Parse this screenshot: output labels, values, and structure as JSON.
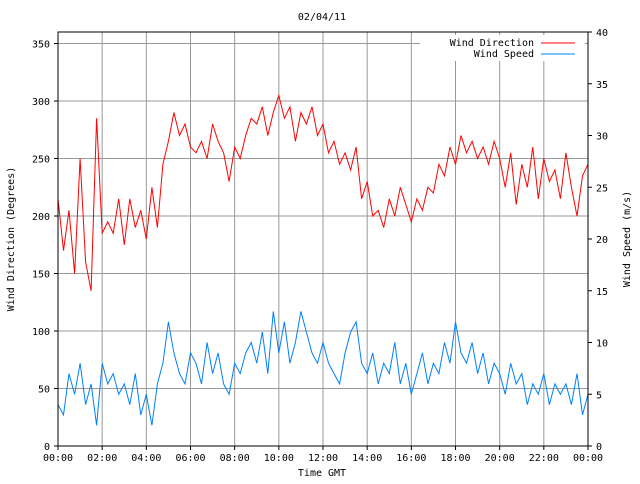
{
  "chart_data": {
    "type": "line",
    "title": "02/04/11",
    "xlabel": "Time GMT",
    "ylabel_left": "Wind Direction (Degrees)",
    "ylabel_right": "Wind Speed (m/s)",
    "xlim_hours": [
      0,
      24
    ],
    "ylim_left": [
      0,
      360
    ],
    "ylim_right": [
      0,
      40
    ],
    "grid": true,
    "legend_placement": "top-right",
    "x_tick_labels": [
      "00:00",
      "02:00",
      "04:00",
      "06:00",
      "08:00",
      "10:00",
      "12:00",
      "14:00",
      "16:00",
      "18:00",
      "20:00",
      "22:00",
      "00:00"
    ],
    "y_left_ticks": [
      0,
      50,
      100,
      150,
      200,
      250,
      300,
      350
    ],
    "y_right_ticks": [
      0,
      5,
      10,
      15,
      20,
      25,
      30,
      35,
      40
    ],
    "x_step_hours": 0.25,
    "series": [
      {
        "name": "Wind Direction",
        "axis": "left",
        "color": "#ff0000",
        "values": [
          215,
          170,
          205,
          150,
          250,
          160,
          135,
          285,
          185,
          195,
          185,
          215,
          175,
          215,
          190,
          205,
          180,
          225,
          190,
          245,
          265,
          290,
          270,
          280,
          260,
          255,
          265,
          250,
          280,
          265,
          255,
          230,
          260,
          250,
          270,
          285,
          280,
          295,
          270,
          290,
          305,
          285,
          295,
          265,
          290,
          280,
          295,
          270,
          280,
          255,
          265,
          245,
          255,
          240,
          260,
          215,
          230,
          200,
          205,
          190,
          215,
          200,
          225,
          210,
          195,
          215,
          205,
          225,
          220,
          245,
          235,
          260,
          245,
          270,
          255,
          265,
          250,
          260,
          245,
          265,
          250,
          225,
          255,
          210,
          245,
          225,
          260,
          215,
          250,
          230,
          240,
          215,
          255,
          225,
          200,
          235,
          245
        ]
      },
      {
        "name": "Wind Speed",
        "axis": "right",
        "color": "#0080ff",
        "values": [
          4,
          3,
          7,
          5,
          8,
          4,
          6,
          2,
          8,
          6,
          7,
          5,
          6,
          4,
          7,
          3,
          5,
          2,
          6,
          8,
          12,
          9,
          7,
          6,
          9,
          8,
          6,
          10,
          7,
          9,
          6,
          5,
          8,
          7,
          9,
          10,
          8,
          11,
          7,
          13,
          9,
          12,
          8,
          10,
          13,
          11,
          9,
          8,
          10,
          8,
          7,
          6,
          9,
          11,
          12,
          8,
          7,
          9,
          6,
          8,
          7,
          10,
          6,
          8,
          5,
          7,
          9,
          6,
          8,
          7,
          10,
          8,
          12,
          9,
          8,
          10,
          7,
          9,
          6,
          8,
          7,
          5,
          8,
          6,
          7,
          4,
          6,
          5,
          7,
          4,
          6,
          5,
          6,
          4,
          7,
          3,
          5
        ]
      }
    ]
  }
}
